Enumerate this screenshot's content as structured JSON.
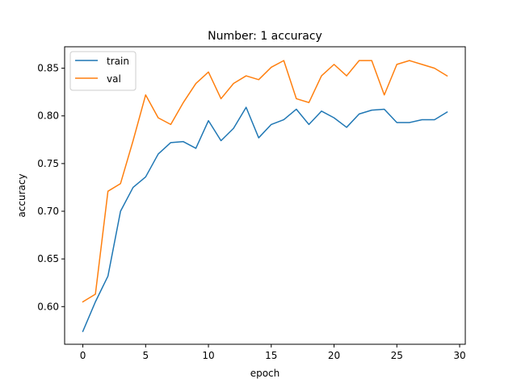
{
  "chart_data": {
    "type": "line",
    "title": "Number: 1 accuracy",
    "xlabel": "epoch",
    "ylabel": "accuracy",
    "xlim": [
      -1.45,
      30.45
    ],
    "ylim": [
      0.5605,
      0.8725
    ],
    "xticks": [
      0,
      5,
      10,
      15,
      20,
      25,
      30
    ],
    "xtick_labels": [
      "0",
      "5",
      "10",
      "15",
      "20",
      "25",
      "30"
    ],
    "yticks": [
      0.6,
      0.65,
      0.7,
      0.75,
      0.8,
      0.85
    ],
    "ytick_labels": [
      "0.60",
      "0.65",
      "0.70",
      "0.75",
      "0.80",
      "0.85"
    ],
    "grid": false,
    "legend_position": "upper-left",
    "x": [
      0,
      1,
      2,
      3,
      4,
      5,
      6,
      7,
      8,
      9,
      10,
      11,
      12,
      13,
      14,
      15,
      16,
      17,
      18,
      19,
      20,
      21,
      22,
      23,
      24,
      25,
      26,
      27,
      28,
      29
    ],
    "series": [
      {
        "name": "train",
        "color": "#1f77b4",
        "values": [
          0.574,
          0.605,
          0.632,
          0.7,
          0.725,
          0.736,
          0.76,
          0.772,
          0.773,
          0.766,
          0.795,
          0.774,
          0.787,
          0.809,
          0.777,
          0.791,
          0.796,
          0.807,
          0.791,
          0.805,
          0.798,
          0.788,
          0.802,
          0.806,
          0.807,
          0.793,
          0.793,
          0.796,
          0.796,
          0.804
        ]
      },
      {
        "name": "val",
        "color": "#ff7f0e",
        "values": [
          0.605,
          0.613,
          0.721,
          0.729,
          0.774,
          0.822,
          0.798,
          0.791,
          0.814,
          0.834,
          0.846,
          0.818,
          0.834,
          0.842,
          0.838,
          0.851,
          0.858,
          0.818,
          0.814,
          0.842,
          0.854,
          0.842,
          0.858,
          0.858,
          0.822,
          0.854,
          0.858,
          0.854,
          0.85,
          0.842
        ]
      }
    ]
  }
}
